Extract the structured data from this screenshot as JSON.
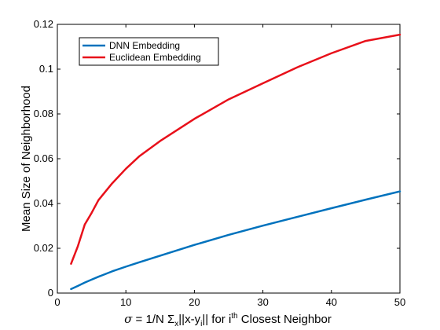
{
  "chart_data": {
    "type": "line",
    "title": "",
    "xlabel": {
      "sigma": "σ",
      "eq": " = 1/N Σ",
      "sub_x": "x",
      "mid": "||x-y",
      "sub_i": "i",
      "mid2": "|| for i",
      "sup_th": "th",
      "tail": " Closest Neighbor"
    },
    "ylabel": "Mean Size of Neighborhood",
    "xlim": [
      0,
      50
    ],
    "ylim": [
      0,
      0.12
    ],
    "xticks": [
      0,
      10,
      20,
      30,
      40,
      50
    ],
    "yticks": [
      0,
      0.02,
      0.04,
      0.06,
      0.08,
      0.1,
      0.12
    ],
    "xtick_labels": [
      "0",
      "10",
      "20",
      "30",
      "40",
      "50"
    ],
    "ytick_labels": [
      "0",
      "0.02",
      "0.04",
      "0.06",
      "0.08",
      "0.1",
      "0.12"
    ],
    "grid": false,
    "legend_position": "top-left",
    "series": [
      {
        "name": "DNN Embedding",
        "color": "#0072BD",
        "x": [
          2,
          3,
          4,
          5,
          6,
          8,
          10,
          12,
          15,
          20,
          25,
          30,
          35,
          40,
          45,
          50
        ],
        "y": [
          0.0018,
          0.0032,
          0.0047,
          0.006,
          0.0073,
          0.0097,
          0.0118,
          0.0138,
          0.0167,
          0.0215,
          0.026,
          0.0301,
          0.034,
          0.0379,
          0.0417,
          0.0454
        ]
      },
      {
        "name": "Euclidean Embedding",
        "color": "#E8101A",
        "x": [
          2,
          3,
          4,
          5,
          6,
          8,
          10,
          12,
          15,
          20,
          25,
          30,
          35,
          40,
          45,
          50
        ],
        "y": [
          0.0131,
          0.021,
          0.0306,
          0.0358,
          0.0415,
          0.049,
          0.0555,
          0.0612,
          0.0679,
          0.0778,
          0.0865,
          0.0937,
          0.1008,
          0.1071,
          0.1126,
          0.1154
        ]
      }
    ]
  }
}
